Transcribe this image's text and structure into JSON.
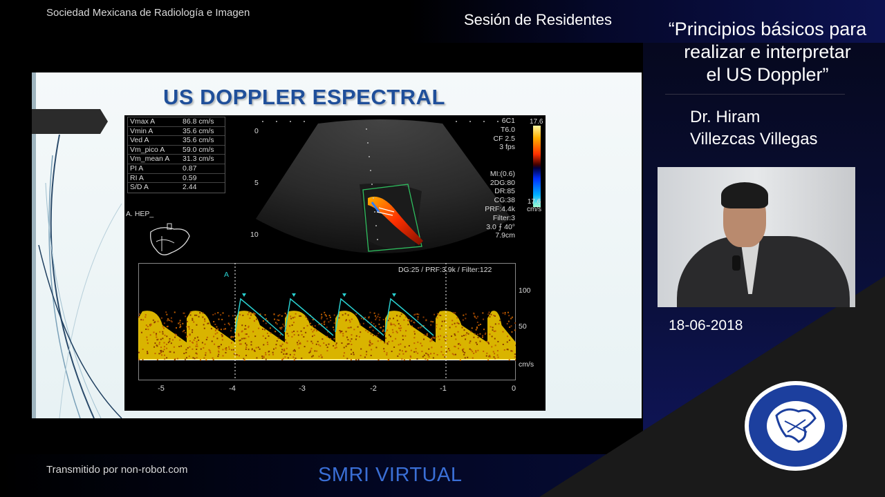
{
  "header": {
    "organization": "Sociedad Mexicana de Radiología e Imagen",
    "session": "Sesión de Residentes"
  },
  "talk": {
    "title_lines": [
      "“Principios básicos para",
      "realizar e interpretar",
      "el US Doppler”"
    ],
    "speaker_lines": [
      "Dr. Hiram",
      "Villezcas Villegas"
    ],
    "date": "18-06-2018"
  },
  "footer": {
    "transmitted": "Transmitido por non-robot.com",
    "brand": "SMRI VIRTUAL"
  },
  "slide": {
    "title": "US DOPPLER ESPECTRAL",
    "ultrasound": {
      "measurements": [
        {
          "label": "Vmax  A",
          "value": "86.8  cm/s"
        },
        {
          "label": "Vmin  A",
          "value": "35.6  cm/s"
        },
        {
          "label": "Ved  A",
          "value": "35.6  cm/s"
        },
        {
          "label": "Vm_pico  A",
          "value": "59.0  cm/s"
        },
        {
          "label": "Vm_mean  A",
          "value": "31.3  cm/s"
        },
        {
          "label": "PI  A",
          "value": "0.87"
        },
        {
          "label": "RI  A",
          "value": "0.59"
        },
        {
          "label": "S/D  A",
          "value": "2.44"
        }
      ],
      "label_vessel": "A. HEP_",
      "depth_marks": [
        "0",
        "5",
        "10"
      ],
      "params": [
        "6C1",
        "T6.0",
        "CF 2.5",
        "3 fps",
        "",
        "",
        "MI:(0.6)",
        "2DG:80",
        "DR:85",
        "CG:38",
        "PRF:4.4k",
        "Filter:3",
        "3.0 ⨍ 40°",
        "7.9cm"
      ],
      "color_scale_top": "17.6",
      "color_scale_bottom": "17.6",
      "color_scale_unit": "cm/s",
      "spectral_header": "DG:25 /   PRF:3.9k   / Filter:122",
      "spectral_marker": "A",
      "y_ticks": [
        "100",
        "50"
      ],
      "y_unit": "cm/s",
      "x_ticks": [
        "-5",
        "-4",
        "-3",
        "-2",
        "-1",
        "0"
      ]
    }
  },
  "colors": {
    "title_blue": "#1f4f9a",
    "brand_blue": "#3a6fd6",
    "doppler_yellow": "#ffd400",
    "trace_cyan": "#29d0d0"
  }
}
